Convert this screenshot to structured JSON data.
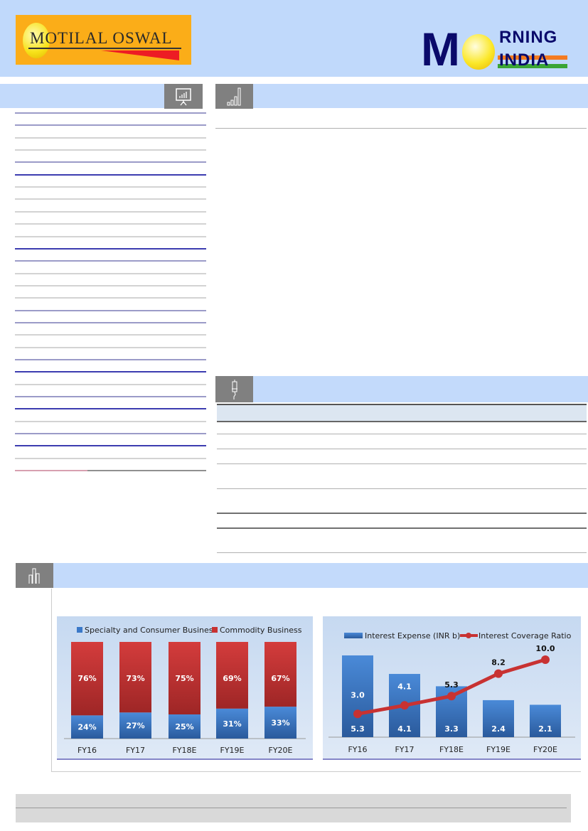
{
  "header": {
    "left_logo_text": "MOTILAL OSWAL",
    "right_logo_text": {
      "big_letter": "M",
      "line1": "RNING",
      "line2": "INDIA"
    }
  },
  "icons": {
    "section1": "presentation-chart-icon",
    "section2": "bar-growth-icon",
    "section3": "pen-icon",
    "section4": "column-chart-icon"
  },
  "colors": {
    "header_bg": "#c0d9fb",
    "section_bar": "#c3dafb",
    "icon_box": "#808080",
    "specialty": "#3a78c8",
    "commodity": "#c83232",
    "line": "#c83232"
  },
  "chart_data": [
    {
      "type": "bar",
      "stacked": true,
      "percent": true,
      "categories": [
        "FY16",
        "FY17",
        "FY18E",
        "FY19E",
        "FY20E"
      ],
      "series": [
        {
          "name": "Specialty and Consumer Business",
          "values": [
            24,
            27,
            25,
            31,
            33
          ],
          "labels": [
            "24%",
            "27%",
            "25%",
            "31%",
            "33%"
          ]
        },
        {
          "name": "Commodity Business",
          "values": [
            76,
            73,
            75,
            69,
            67
          ],
          "labels": [
            "76%",
            "73%",
            "75%",
            "69%",
            "67%"
          ]
        }
      ],
      "legend": "top",
      "grid": false
    },
    {
      "type": "bar+line",
      "categories": [
        "FY16",
        "FY17",
        "FY18E",
        "FY19E",
        "FY20E"
      ],
      "series": [
        {
          "name": "Interest Expense (INR b)",
          "type": "bar",
          "values": [
            5.3,
            4.1,
            3.3,
            2.4,
            2.1
          ],
          "labels": [
            "5.3",
            "4.1",
            "3.3",
            "2.4",
            "2.1"
          ]
        },
        {
          "name": "Interest Coverage Ratio",
          "type": "line",
          "values": [
            3.0,
            4.1,
            5.3,
            8.2,
            10.0
          ],
          "labels": [
            "3.0",
            "4.1",
            "5.3",
            "8.2",
            "10.0"
          ]
        }
      ],
      "legend": "top",
      "grid": false
    }
  ]
}
